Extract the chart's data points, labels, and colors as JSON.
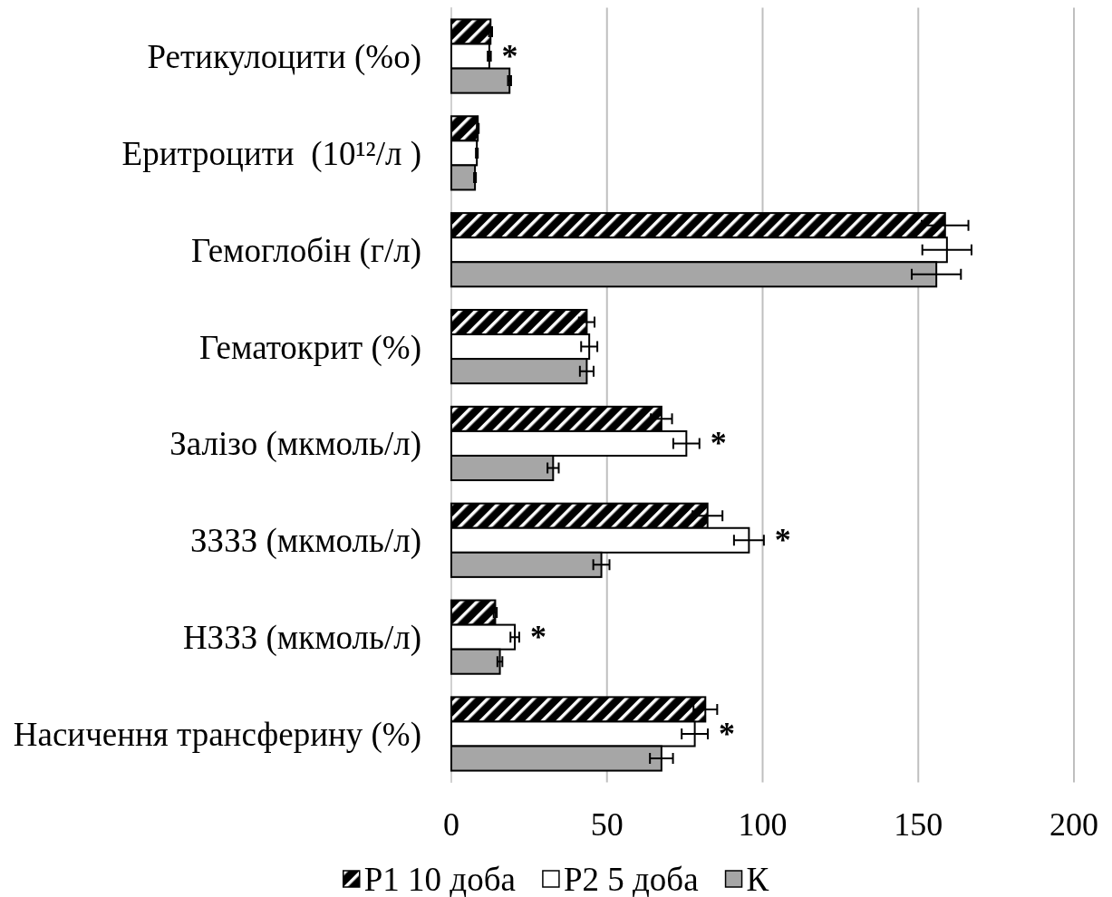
{
  "chart_data": {
    "type": "bar",
    "orientation": "horizontal",
    "categories": [
      "Ретикулоцити (%о)",
      "Еритроцити  (10¹²/л )",
      "Гемоглобін (г/л)",
      "Гематокрит (%)",
      "Залізо (мкмоль/л)",
      "ЗЗЗЗ (мкмоль/л)",
      "НЗЗЗ (мкмоль/л)",
      "Насичення трансферину (%)"
    ],
    "series": [
      {
        "name": "Р1 10 доба",
        "color": "#000000",
        "values": [
          12.6,
          8.5,
          158.6,
          43.5,
          67.5,
          82.3,
          14.1,
          81.6
        ],
        "errors": [
          0.5,
          0.3,
          7.5,
          2.5,
          3.4,
          4.8,
          0.5,
          3.8
        ]
      },
      {
        "name": "Р2 5 доба",
        "color": "#ffffff",
        "values": [
          12.2,
          8.2,
          159.2,
          44.3,
          75.5,
          95.6,
          20.4,
          78.2
        ],
        "errors": [
          0.5,
          0.3,
          7.9,
          2.6,
          4.2,
          4.8,
          1.4,
          4.2
        ],
        "value_labels": [
          "*",
          null,
          null,
          null,
          "*",
          "*",
          "*",
          "*"
        ]
      },
      {
        "name": "К",
        "color": "#a6a6a6",
        "values": [
          18.7,
          7.6,
          155.8,
          43.5,
          32.7,
          48.2,
          15.6,
          67.5
        ],
        "errors": [
          0.5,
          0.3,
          7.9,
          2.2,
          1.8,
          2.6,
          0.8,
          3.7
        ]
      }
    ],
    "xlim": [
      0,
      200
    ],
    "xticks": [
      0,
      50,
      100,
      150,
      200
    ],
    "grid": "x",
    "legend": "bottom"
  }
}
